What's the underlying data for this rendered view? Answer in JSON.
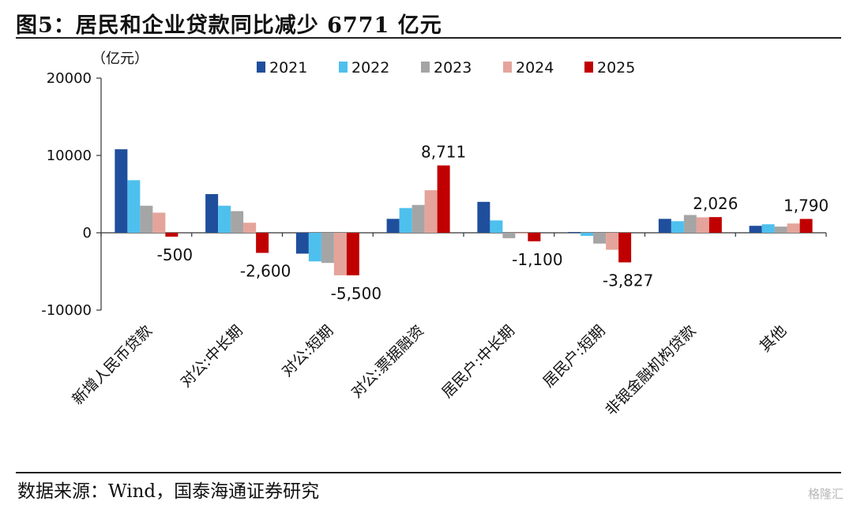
{
  "title": "图5：居民和企业贷款同比减少 6771 亿元",
  "source": "数据来源：Wind，国泰海通证券研究",
  "watermark": "格隆汇",
  "chart_data": {
    "type": "bar",
    "unit_label": "（亿元）",
    "categories": [
      "新增人民币贷款",
      "对公:中长期",
      "对公:短期",
      "对公:票据融资",
      "居民户:中长期",
      "居民户:短期",
      "非银金融机构贷款",
      "其他"
    ],
    "series": [
      {
        "name": "2021",
        "color": "#1f4e9c",
        "values": [
          10800,
          5000,
          -2700,
          1800,
          4000,
          100,
          1800,
          900
        ]
      },
      {
        "name": "2022",
        "color": "#4ec0ee",
        "values": [
          6800,
          3500,
          -3700,
          3200,
          1600,
          -400,
          1500,
          1100
        ]
      },
      {
        "name": "2023",
        "color": "#a5a5a5",
        "values": [
          3500,
          2800,
          -3900,
          3600,
          -700,
          -1400,
          2300,
          800
        ]
      },
      {
        "name": "2024",
        "color": "#e4a49b",
        "values": [
          2600,
          1300,
          -5500,
          5500,
          -100,
          -2200,
          2000,
          1200
        ]
      },
      {
        "name": "2025",
        "color": "#c00000",
        "values": [
          -500,
          -2600,
          -5500,
          8711,
          -1100,
          -3827,
          2026,
          1790
        ]
      }
    ],
    "data_labels": [
      "-500",
      "-2,600",
      "-5,500",
      "8,711",
      "-1,100",
      "-3,827",
      "2,026",
      "1,790"
    ],
    "yticks": [
      20000,
      10000,
      0,
      -10000
    ],
    "ylim": [
      -10000,
      20000
    ],
    "legend_position": "top"
  }
}
